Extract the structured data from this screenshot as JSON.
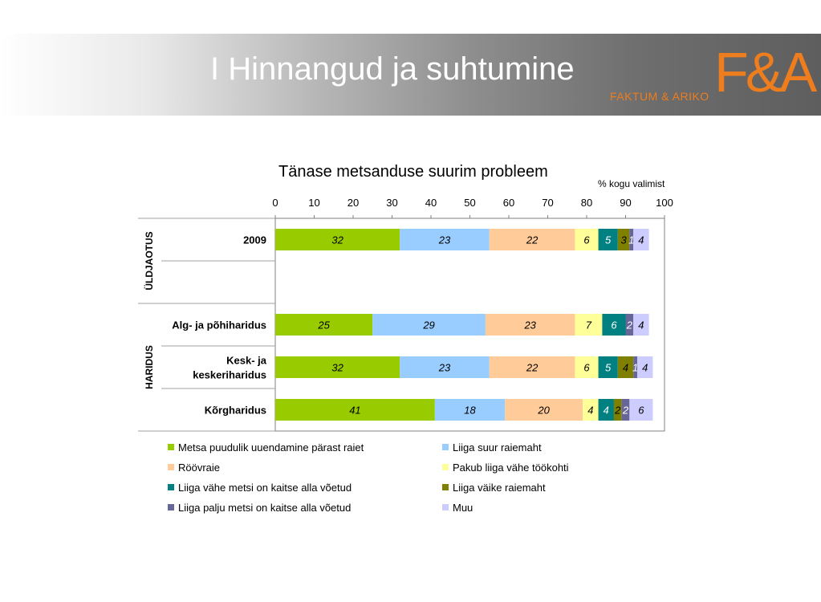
{
  "header": {
    "title": "I Hinnangud ja suhtumine",
    "logo_mark": "F&A",
    "logo_text": "FAKTUM & ARIKO",
    "logo_color": "#ee7d1e"
  },
  "chart_data": {
    "type": "bar",
    "orientation": "horizontal",
    "stacked": true,
    "title": "Tänase metsanduse suurim probleem",
    "units_label": "% kogu valimist",
    "xlim": [
      0,
      100
    ],
    "x_ticks": [
      "0",
      "10",
      "20",
      "30",
      "40",
      "50",
      "60",
      "70",
      "80",
      "90",
      "100"
    ],
    "legend_position": "bottom",
    "groups": [
      {
        "label": "ÜLDJAOTUS",
        "rows": 2
      },
      {
        "label": "HARIDUS",
        "rows": 3
      }
    ],
    "categories": [
      "2009",
      "",
      "Alg- ja põhiharidus",
      "Kesk- ja keskeriharidus",
      "Kõrgharidus"
    ],
    "category_lines": [
      [
        "2009"
      ],
      [],
      [
        "Alg- ja põhiharidus"
      ],
      [
        "Kesk- ja",
        "keskeriharidus"
      ],
      [
        "Kõrgharidus"
      ]
    ],
    "series": [
      {
        "name": "Metsa puudulik uuendamine pärast raiet",
        "color": "#99cc00",
        "values": [
          32,
          null,
          25,
          32,
          41
        ]
      },
      {
        "name": "Liiga suur raiemaht",
        "color": "#99ccff",
        "values": [
          23,
          null,
          29,
          23,
          18
        ]
      },
      {
        "name": "Röövraie",
        "color": "#ffcc99",
        "values": [
          22,
          null,
          23,
          22,
          20
        ]
      },
      {
        "name": "Pakub liiga vähe töökohti",
        "color": "#ffff99",
        "values": [
          6,
          null,
          7,
          6,
          4
        ]
      },
      {
        "name": "Liiga vähe metsi on kaitse alla võetud",
        "color": "#008080",
        "values": [
          5,
          null,
          6,
          5,
          4
        ]
      },
      {
        "name": "Liiga väike raiemaht",
        "color": "#808000",
        "values": [
          3,
          null,
          0,
          4,
          2
        ]
      },
      {
        "name": "Liiga palju metsi on kaitse alla võetud",
        "color": "#666699",
        "values": [
          1,
          null,
          2,
          1,
          2
        ]
      },
      {
        "name": "Muu",
        "color": "#ccccff",
        "values": [
          4,
          null,
          4,
          4,
          6
        ]
      }
    ],
    "label_colors": [
      "#000000",
      "#000000",
      "#000000",
      "#000000",
      "#ffffff",
      "#000000",
      "#ffffff",
      "#000000"
    ]
  }
}
